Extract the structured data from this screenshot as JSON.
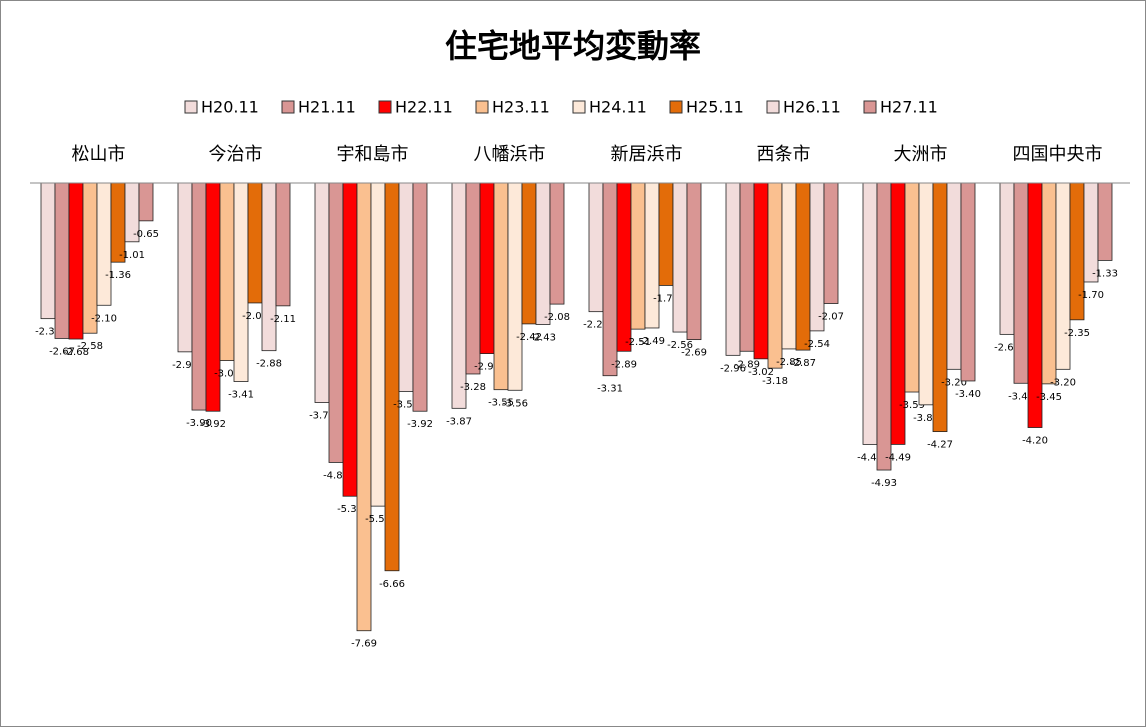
{
  "chart_data": {
    "type": "bar",
    "title": "住宅地平均変動率",
    "categories": [
      "松山市",
      "今治市",
      "宇和島市",
      "八幡浜市",
      "新居浜市",
      "西条市",
      "大洲市",
      "四国中央市"
    ],
    "series": [
      {
        "name": "H20.11",
        "color": "#f2dcdb",
        "values": [
          -2.33,
          -2.9,
          -3.77,
          -3.87,
          -2.21,
          -2.96,
          -4.49,
          -2.6
        ],
        "value_labels": [
          "-2.33",
          "-2.90",
          "-3.77",
          "-3.87",
          "-2.21",
          "-2.96",
          "-4.49",
          "-2.60"
        ]
      },
      {
        "name": "H21.11",
        "color": "#d99694",
        "values": [
          -2.67,
          -3.9,
          -4.8,
          -3.28,
          -3.31,
          -2.89,
          -4.93,
          -3.44
        ],
        "value_labels": [
          "-2.67",
          "-3.90",
          "-4.80",
          "-3.28",
          "-3.31",
          "-2.89",
          "-4.93",
          "-3.44"
        ]
      },
      {
        "name": "H22.11",
        "color": "#ff0000",
        "values": [
          -2.68,
          -3.92,
          -5.38,
          -2.93,
          -2.89,
          -3.02,
          -4.49,
          -4.2
        ],
        "value_labels": [
          "-2.68",
          "-3.92",
          "-5.38",
          "-2.93",
          "-2.89",
          "-3.02",
          "-4.49",
          "-4.20"
        ]
      },
      {
        "name": "H23.11",
        "color": "#fac090",
        "values": [
          -2.58,
          -3.05,
          -7.69,
          -3.55,
          -2.51,
          -3.18,
          -3.59,
          -3.45
        ],
        "value_labels": [
          "-2.58",
          "-3.05",
          "-7.69",
          "-3.55",
          "-2.51",
          "-3.18",
          "-3.59",
          "-3.45"
        ]
      },
      {
        "name": "H24.11",
        "color": "#fde9d9",
        "values": [
          -2.1,
          -3.41,
          -5.55,
          -3.56,
          -2.49,
          -2.85,
          -3.81,
          -3.2
        ],
        "value_labels": [
          "-2.10",
          "-3.41",
          "-5.55",
          "-3.56",
          "-2.49",
          "-2.85",
          "-3.81",
          "-3.20"
        ]
      },
      {
        "name": "H25.11",
        "color": "#e36c09",
        "values": [
          -1.36,
          -2.06,
          -6.66,
          -2.42,
          -1.76,
          -2.87,
          -4.27,
          -2.35
        ],
        "value_labels": [
          "-1.36",
          "-2.06",
          "-6.66",
          "-2.42",
          "-1.76",
          "-2.87",
          "-4.27",
          "-2.35"
        ]
      },
      {
        "name": "H26.11",
        "color": "#f2dcdb",
        "values": [
          -1.01,
          -2.88,
          -3.58,
          -2.43,
          -2.56,
          -2.54,
          -3.2,
          -1.7
        ],
        "value_labels": [
          "-1.01",
          "-2.88",
          "-3.58",
          "-2.43",
          "-2.56",
          "-2.54",
          "-3.20",
          "-1.70"
        ]
      },
      {
        "name": "H27.11",
        "color": "#d99694",
        "values": [
          -0.65,
          -2.11,
          -3.92,
          -2.08,
          -2.69,
          -2.07,
          -3.4,
          -1.33
        ],
        "value_labels": [
          "-0.65",
          "-2.11",
          "-3.92",
          "-2.08",
          "-2.69",
          "-2.07",
          "-3.40",
          "-1.33"
        ]
      }
    ],
    "ylim": [
      -9,
      0
    ],
    "legend": "top"
  }
}
